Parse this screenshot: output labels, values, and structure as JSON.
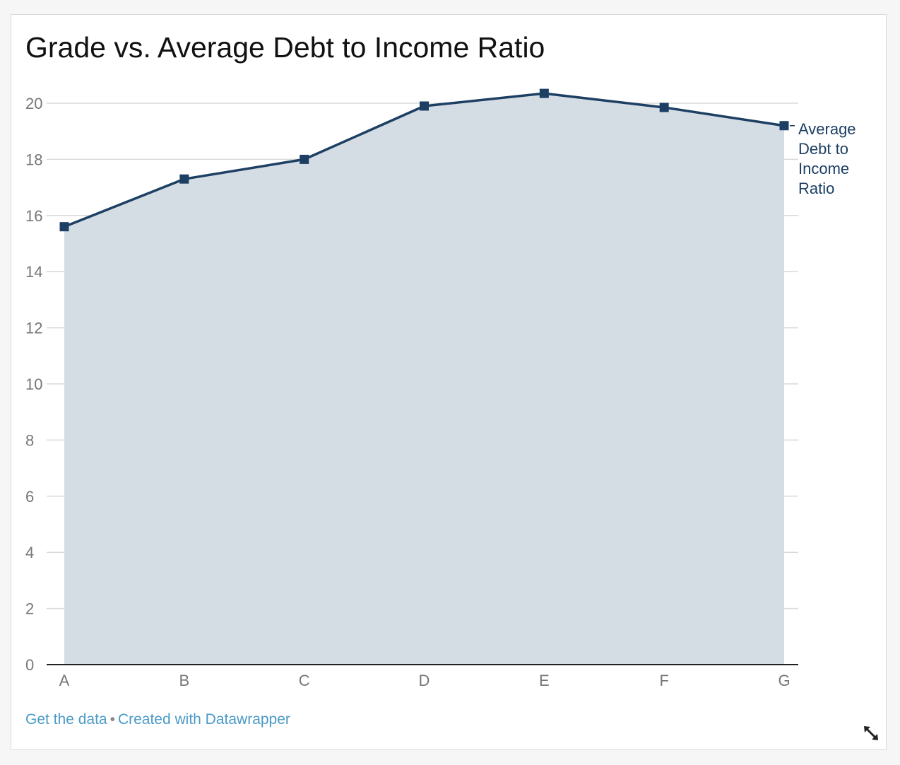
{
  "chart_data": {
    "type": "area",
    "title": "Grade vs. Average Debt to Income Ratio",
    "categories": [
      "A",
      "B",
      "C",
      "D",
      "E",
      "F",
      "G"
    ],
    "series": [
      {
        "name": "Average Debt to Income Ratio",
        "label_lines": [
          "Average",
          "Debt to",
          "Income",
          "Ratio"
        ],
        "values": [
          15.6,
          17.3,
          18.0,
          19.9,
          20.35,
          19.85,
          19.2
        ]
      }
    ],
    "yticks": [
      0,
      2,
      4,
      6,
      8,
      10,
      12,
      14,
      16,
      18,
      20
    ],
    "ylim": [
      0,
      20.8
    ],
    "grid": true,
    "line_color": "#1c3f63",
    "fill_color": "#d5dde4",
    "marker": "square"
  },
  "footer": {
    "get_data": "Get the data",
    "separator": "•",
    "created_with": "Created with Datawrapper"
  },
  "colors": {
    "link": "#4b9ac7",
    "axis_text": "#777777",
    "grid": "#d9d9d9"
  },
  "icons": {
    "resize": "resize-diagonal-icon"
  }
}
